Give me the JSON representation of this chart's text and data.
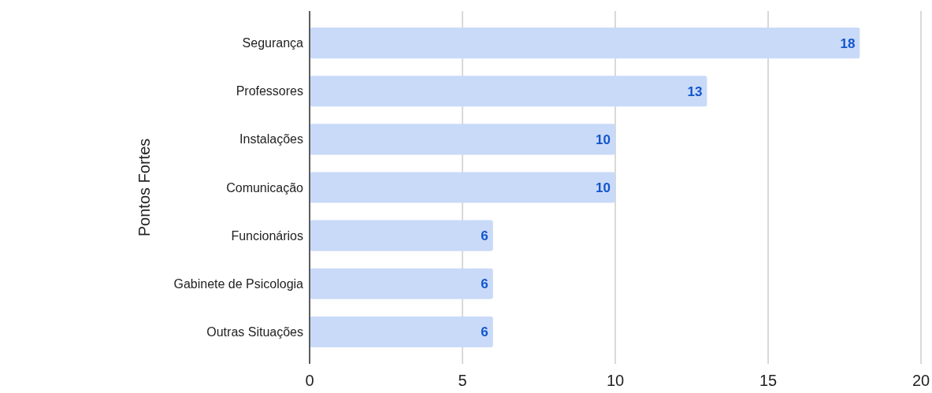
{
  "chart_data": {
    "type": "bar",
    "orientation": "horizontal",
    "ylabel": "Pontos Fortes",
    "categories": [
      "Segurança",
      "Professores",
      "Instalações",
      "Comunicação",
      "Funcionários",
      "Gabinete de Psicologia",
      "Outras Situações"
    ],
    "values": [
      18,
      13,
      10,
      10,
      6,
      6,
      6
    ],
    "color": "#c9daf8",
    "xlim": [
      0,
      20
    ],
    "xticks": [
      0,
      5,
      10,
      15,
      20
    ],
    "grid": "x",
    "data_labels": true
  }
}
